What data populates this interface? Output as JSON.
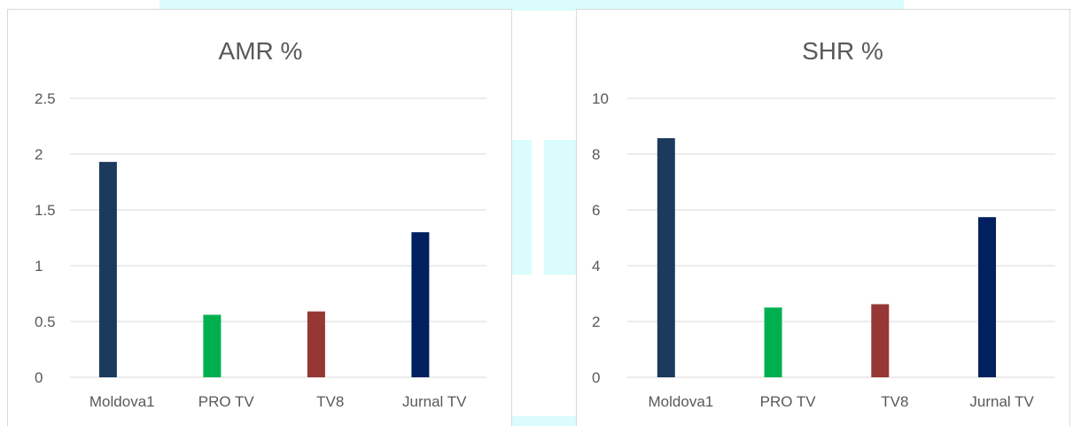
{
  "chart_data": [
    {
      "type": "bar",
      "title": "AMR %",
      "xlabel": "",
      "ylabel": "",
      "categories": [
        "Moldova1",
        "PRO TV",
        "TV8",
        "Jurnal TV"
      ],
      "values": [
        1.93,
        0.56,
        0.59,
        1.3
      ],
      "colors": [
        "#1b3a5e",
        "#00b050",
        "#953735",
        "#002060"
      ],
      "ylim": [
        0,
        2.5
      ],
      "yticks": [
        0,
        0.5,
        1,
        1.5,
        2,
        2.5
      ],
      "ytick_labels": [
        "0",
        "0.5",
        "1",
        "1.5",
        "2",
        "2.5"
      ],
      "grid": true,
      "legend": "none"
    },
    {
      "type": "bar",
      "title": "SHR %",
      "xlabel": "",
      "ylabel": "",
      "categories": [
        "Moldova1",
        "PRO TV",
        "TV8",
        "Jurnal TV"
      ],
      "values": [
        8.57,
        2.5,
        2.62,
        5.74
      ],
      "colors": [
        "#1b3a5e",
        "#00b050",
        "#953735",
        "#002060"
      ],
      "ylim": [
        0,
        10
      ],
      "yticks": [
        0,
        2,
        4,
        6,
        8,
        10
      ],
      "ytick_labels": [
        "0",
        "2",
        "4",
        "6",
        "8",
        "10"
      ],
      "grid": true,
      "legend": "none"
    }
  ]
}
